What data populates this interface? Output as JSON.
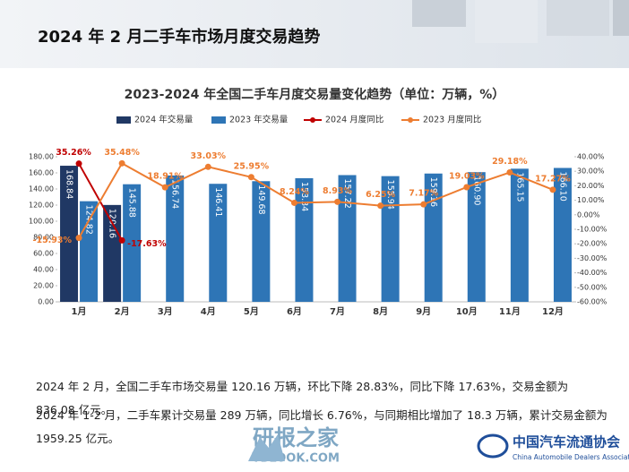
{
  "header": {
    "title": "2024 年 2 月二手车市场月度交易趋势"
  },
  "chart_data": {
    "type": "bar",
    "title": "2023-2024 年全国二手车月度交易量变化趋势（单位：万辆，%）",
    "categories": [
      "1月",
      "2月",
      "3月",
      "4月",
      "5月",
      "6月",
      "7月",
      "8月",
      "9月",
      "10月",
      "11月",
      "12月"
    ],
    "series": [
      {
        "name": "2024 年交易量",
        "type": "bar",
        "color": "#203864",
        "values": [
          168.84,
          120.16,
          null,
          null,
          null,
          null,
          null,
          null,
          null,
          null,
          null,
          null
        ],
        "value_labels": [
          "168.84",
          "120.16",
          null,
          null,
          null,
          null,
          null,
          null,
          null,
          null,
          null,
          null
        ]
      },
      {
        "name": "2023 年交易量",
        "type": "bar",
        "color": "#2e75b6",
        "values": [
          124.82,
          145.88,
          156.74,
          146.41,
          149.68,
          153.34,
          157.22,
          155.94,
          159.16,
          160.9,
          165.15,
          166.1
        ],
        "value_labels": [
          "124.82",
          "145.88",
          "156.74",
          "146.41",
          "149.68",
          "153.34",
          "157.22",
          "155.94",
          "159.16",
          "160.90",
          "165.15",
          "166.10"
        ]
      },
      {
        "name": "2024 月度同比",
        "type": "line",
        "axis": "y2",
        "color": "#c00000",
        "values": [
          35.26,
          -17.63,
          null,
          null,
          null,
          null,
          null,
          null,
          null,
          null,
          null,
          null
        ],
        "value_labels": [
          "35.26%",
          "-17.63%",
          null,
          null,
          null,
          null,
          null,
          null,
          null,
          null,
          null,
          null
        ]
      },
      {
        "name": "2023 月度同比",
        "type": "line",
        "axis": "y2",
        "color": "#ed7d31",
        "values": [
          -15.93,
          35.48,
          18.91,
          33.03,
          25.95,
          8.24,
          8.93,
          6.25,
          7.17,
          19.03,
          29.18,
          17.27
        ],
        "value_labels": [
          "-15.93%",
          "35.48%",
          "18.91%",
          "33.03%",
          "25.95%",
          "8.24%",
          "8.93%",
          "6.25%",
          "7.17%",
          "19.03%",
          "29.18%",
          "17.27%"
        ]
      }
    ],
    "ylim": [
      0,
      180
    ],
    "yticks": [
      {
        "value": 0,
        "label": "0.00"
      },
      {
        "value": 20,
        "label": "20.00"
      },
      {
        "value": 40,
        "label": "40.00"
      },
      {
        "value": 60,
        "label": "60.00"
      },
      {
        "value": 80,
        "label": "80.00"
      },
      {
        "value": 100,
        "label": "100.00"
      },
      {
        "value": 120,
        "label": "120.00"
      },
      {
        "value": 140,
        "label": "140.00"
      },
      {
        "value": 160,
        "label": "160.00"
      },
      {
        "value": 180,
        "label": "180.00"
      }
    ],
    "y2lim": [
      -60,
      40
    ],
    "y2ticks": [
      {
        "value": -60,
        "label": "-60.00%"
      },
      {
        "value": -50,
        "label": "-50.00%"
      },
      {
        "value": -40,
        "label": "-40.00%"
      },
      {
        "value": -30,
        "label": "-30.00%"
      },
      {
        "value": -20,
        "label": "-20.00%"
      },
      {
        "value": -10,
        "label": "-10.00%"
      },
      {
        "value": 0,
        "label": "0.00%"
      },
      {
        "value": 10,
        "label": "10.00%"
      },
      {
        "value": 20,
        "label": "20.00%"
      },
      {
        "value": 30,
        "label": "30.00%"
      },
      {
        "value": 40,
        "label": "40.00%"
      }
    ]
  },
  "text": {
    "paragraphs": [
      "2024 年 2 月，全国二手车市场交易量 120.16 万辆，环比下降 28.83%，同比下降 17.63%，交易金额为 836.08 亿元。",
      "2024 年 1-2 月，二手车累计交易量 289 万辆，同比增长 6.76%，与同期相比增加了 18.3 万辆，累计交易金额为 1959.25 亿元。"
    ]
  },
  "footer": {
    "watermark": "研报之家",
    "watermark_url": "YBLOOK.COM",
    "org": "中国汽车流通协会",
    "org_en": "China Automobile Dealers Association"
  }
}
